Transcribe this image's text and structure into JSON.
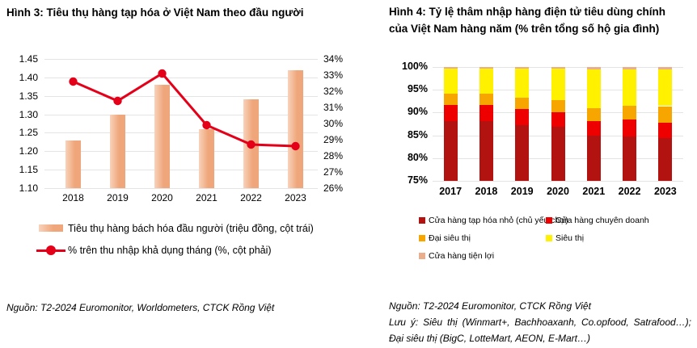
{
  "page": {
    "background": "#FFFFFF"
  },
  "colors": {
    "gridline": "#E4E4E4",
    "text": "#000000",
    "bar_peach": "#EFA67A",
    "line_red": "#E50019"
  },
  "chart_data": [
    {
      "figure": "Hình 3",
      "type": "bar",
      "subtype": "bar + line combo, dual axis",
      "title": "Hình 3: Tiêu thụ hàng tạp hóa ở Việt Nam theo đầu người",
      "categories": [
        "2018",
        "2019",
        "2020",
        "2021",
        "2022",
        "2023"
      ],
      "series": [
        {
          "name": "Tiêu thụ hàng bách hóa đầu người (triệu đồng, cột trái)",
          "type": "bar",
          "axis": "left",
          "color": "#EFA67A",
          "values": [
            1.23,
            1.3,
            1.38,
            1.26,
            1.34,
            1.42
          ]
        },
        {
          "name": "% trên thu nhập khả dụng tháng (%, cột phải)",
          "type": "line",
          "axis": "right",
          "color": "#E50019",
          "values": [
            32.6,
            31.4,
            33.1,
            29.9,
            28.7,
            28.6
          ]
        }
      ],
      "left_axis": {
        "min": 1.1,
        "max": 1.45,
        "step": 0.05,
        "ticks": [
          "1.45",
          "1.40",
          "1.35",
          "1.30",
          "1.25",
          "1.20",
          "1.15",
          "1.10"
        ]
      },
      "right_axis": {
        "min": 26,
        "max": 34,
        "step": 1,
        "ticks": [
          "34%",
          "33%",
          "32%",
          "31%",
          "30%",
          "29%",
          "28%",
          "27%",
          "26%"
        ]
      },
      "grid": true,
      "legend_position": "bottom-left",
      "source": "Nguồn: T2-2024 Euromonitor, Worldometers, CTCK Rồng Việt"
    },
    {
      "figure": "Hình 4",
      "type": "bar",
      "subtype": "stacked bar, 100% penetration",
      "title_line1": "Hình 4: Tỷ lệ thâm nhập hàng điện tử tiêu dùng chính",
      "title_line2": "của Việt Nam hàng năm (% trên tổng số hộ gia đình)",
      "categories": [
        "2017",
        "2018",
        "2019",
        "2020",
        "2021",
        "2022",
        "2023"
      ],
      "series": [
        {
          "name": "Cửa hàng tạp hóa nhỏ (chủ yếu chợ)",
          "color": "#B21311",
          "values": [
            88.2,
            88.2,
            87.2,
            86.9,
            85.0,
            84.8,
            84.4
          ]
        },
        {
          "name": "Cửa hàng chuyên doanh",
          "color": "#EE0000",
          "values": [
            3.5,
            3.5,
            3.6,
            3.2,
            3.2,
            3.6,
            3.4
          ]
        },
        {
          "name": "Đại siêu thị",
          "color": "#F7A600",
          "values": [
            2.4,
            2.5,
            2.5,
            2.6,
            2.8,
            3.1,
            3.6
          ]
        },
        {
          "name": "Siêu thị",
          "color": "#FFF100",
          "values": [
            5.6,
            5.4,
            6.3,
            6.9,
            8.5,
            8.0,
            8.0
          ]
        },
        {
          "name": "Cửa hàng tiện lợi",
          "color": "#E9AE8C",
          "values": [
            0.3,
            0.4,
            0.4,
            0.4,
            0.5,
            0.5,
            0.6
          ]
        }
      ],
      "y_axis": {
        "min": 75,
        "max": 100,
        "step": 5,
        "ticks": [
          "100%",
          "95%",
          "90%",
          "85%",
          "80%",
          "75%"
        ]
      },
      "grid": true,
      "legend_position": "bottom-left",
      "source": "Nguồn: T2-2024 Euromonitor, CTCK Rồng Việt",
      "note_line1": "Lưu ý: Siêu thị (Winmart+, Bachhoaxanh, Co.opfood, Satrafood…);",
      "note_line2": "Đại siêu thị (BigC, LotteMart, AEON, E-Mart…)"
    }
  ]
}
